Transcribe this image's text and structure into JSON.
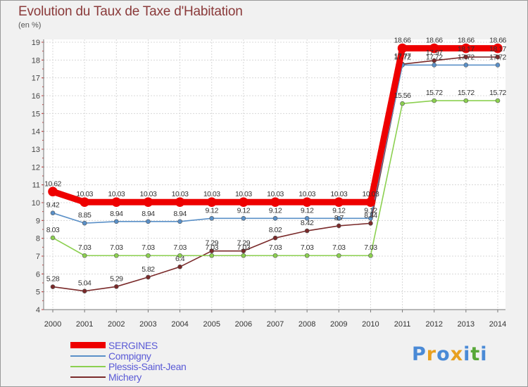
{
  "title": "Evolution du Taux de Taxe d'Habitation",
  "unit": "(en %)",
  "logo": {
    "letters": [
      "P",
      "r",
      "o",
      "x",
      "i",
      "t",
      "i"
    ],
    "colors": [
      "#4a8ad6",
      "#e8a020",
      "#4a8ad6",
      "#e8a020",
      "#4a8ad6",
      "#58a838",
      "#4a8ad6"
    ]
  },
  "chart_data": {
    "type": "line",
    "title": "Evolution du Taux de Taxe d'Habitation",
    "ylabel": "(en %)",
    "xlabel": "",
    "ylim": [
      4,
      19
    ],
    "yticks": [
      4,
      5,
      6,
      7,
      8,
      9,
      10,
      11,
      12,
      13,
      14,
      15,
      16,
      17,
      18,
      19
    ],
    "grid": true,
    "legend_position": "bottom-left",
    "x": [
      "2000",
      "2001",
      "2002",
      "2003",
      "2004",
      "2005",
      "2006",
      "2007",
      "2008",
      "2009",
      "2010",
      "2011",
      "2012",
      "2013",
      "2014"
    ],
    "series": [
      {
        "name": "Michery",
        "color": "#7a2a2a",
        "values": [
          5.28,
          5.04,
          5.29,
          5.82,
          6.4,
          7.29,
          7.29,
          8.02,
          8.42,
          8.7,
          8.84,
          17.77,
          17.97,
          18.17,
          18.17
        ],
        "labels": [
          "5.28",
          "5.04",
          "5.29",
          "5.82",
          "6.4",
          "7.29",
          "7.29",
          "8.02",
          "8.42",
          "8.7",
          "8.84",
          "17.77",
          "17.97",
          "18.17",
          "18.17"
        ]
      },
      {
        "name": "Plessis-Saint-Jean",
        "color": "#8cd050",
        "values": [
          8.03,
          7.03,
          7.03,
          7.03,
          7.03,
          7.03,
          7.03,
          7.03,
          7.03,
          7.03,
          7.03,
          15.56,
          15.72,
          15.72,
          15.72
        ],
        "labels": [
          "8.03",
          "7.03",
          "7.03",
          "7.03",
          "7.03",
          "7.03",
          "7.03",
          "7.03",
          "7.03",
          "7.03",
          "7.03",
          "15.56",
          "15.72",
          "15.72",
          "15.72"
        ]
      },
      {
        "name": "Compigny",
        "color": "#5a90c8",
        "values": [
          9.42,
          8.85,
          8.94,
          8.94,
          8.94,
          9.12,
          9.12,
          9.12,
          9.12,
          9.12,
          9.12,
          17.72,
          17.72,
          17.72,
          17.72
        ],
        "labels": [
          "9.42",
          "8.85",
          "8.94",
          "8.94",
          "8.94",
          "9.12",
          "9.12",
          "9.12",
          "9.12",
          "9.12",
          "9.12",
          "17.72",
          "17.72",
          "17.72",
          "17.72"
        ]
      },
      {
        "name": "SERGINES",
        "color": "#ee0000",
        "values": [
          10.62,
          10.03,
          10.03,
          10.03,
          10.03,
          10.03,
          10.03,
          10.03,
          10.03,
          10.03,
          10.03,
          18.66,
          18.66,
          18.66,
          18.66
        ],
        "labels": [
          "10.62",
          "10.03",
          "10.03",
          "10.03",
          "10.03",
          "10.03",
          "10.03",
          "10.03",
          "10.03",
          "10.03",
          "10.03",
          "18.66",
          "18.66",
          "18.66",
          "18.66"
        ]
      }
    ]
  }
}
